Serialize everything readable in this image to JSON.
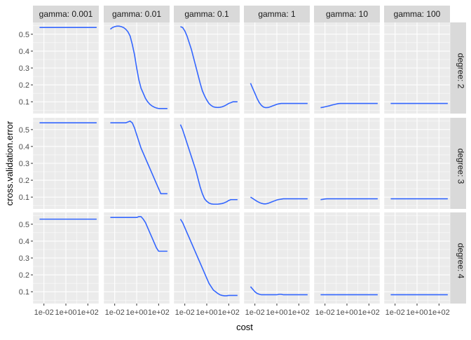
{
  "chart_data": {
    "type": "line",
    "facet": "grid",
    "xlabel": "cost",
    "ylabel": "cross.validation.error",
    "x_scale": "log10",
    "xlim": [
      0.001,
      1000
    ],
    "x_ticks": [
      0.01,
      1,
      100
    ],
    "x_tick_labels": [
      "1e-02",
      "1e+00",
      "1e+02"
    ],
    "ylim": [
      0.03,
      0.57
    ],
    "y_ticks": [
      0.1,
      0.2,
      0.3,
      0.4,
      0.5
    ],
    "y_tick_labels": [
      "0.1",
      "0.2",
      "0.3",
      "0.4",
      "0.5"
    ],
    "grid": true,
    "line_color": "#3366FF",
    "panel_bg": "#EBEBEB",
    "strip_bg": "#D9D9D9",
    "columns": [
      "gamma: 0.001",
      "gamma: 0.01",
      "gamma: 0.1",
      "gamma: 1",
      "gamma: 10",
      "gamma: 100"
    ],
    "rows": [
      "degree: 2",
      "degree: 3",
      "degree: 4"
    ],
    "cost": [
      0.004,
      0.0063,
      0.01,
      0.0158,
      0.0251,
      0.0398,
      0.0631,
      0.1,
      0.158,
      0.251,
      0.398,
      0.631,
      1,
      1.58,
      2.51,
      3.98,
      6.31,
      10,
      15.8,
      25.1,
      39.8,
      63.1,
      100,
      158,
      251,
      398,
      631
    ],
    "errors": [
      [
        [
          0.54,
          0.54,
          0.54,
          0.54,
          0.54,
          0.54,
          0.54,
          0.54,
          0.54,
          0.54,
          0.54,
          0.54,
          0.54,
          0.54,
          0.54,
          0.54,
          0.54,
          0.54,
          0.54,
          0.54,
          0.54,
          0.54,
          0.54,
          0.54,
          0.54,
          0.54,
          0.54
        ],
        [
          0.54,
          0.54,
          0.54,
          0.54,
          0.54,
          0.54,
          0.54,
          0.54,
          0.54,
          0.54,
          0.54,
          0.54,
          0.54,
          0.54,
          0.54,
          0.54,
          0.54,
          0.54,
          0.54,
          0.54,
          0.54,
          0.54,
          0.54,
          0.54,
          0.54,
          0.54,
          0.54
        ],
        [
          0.53,
          0.53,
          0.53,
          0.53,
          0.53,
          0.53,
          0.53,
          0.53,
          0.53,
          0.53,
          0.53,
          0.53,
          0.53,
          0.53,
          0.53,
          0.53,
          0.53,
          0.53,
          0.53,
          0.53,
          0.53,
          0.53,
          0.53,
          0.53,
          0.53,
          0.53,
          0.53
        ]
      ],
      [
        [
          0.53,
          0.54,
          0.545,
          0.548,
          0.548,
          0.545,
          0.54,
          0.53,
          0.515,
          0.49,
          0.44,
          0.38,
          0.3,
          0.23,
          0.18,
          0.15,
          0.12,
          0.1,
          0.085,
          0.075,
          0.068,
          0.063,
          0.06,
          0.06,
          0.06,
          0.06,
          0.06
        ],
        [
          0.54,
          0.54,
          0.54,
          0.54,
          0.54,
          0.54,
          0.54,
          0.54,
          0.545,
          0.55,
          0.54,
          0.51,
          0.47,
          0.43,
          0.39,
          0.36,
          0.33,
          0.3,
          0.27,
          0.24,
          0.21,
          0.18,
          0.15,
          0.12,
          0.12,
          0.12,
          0.12
        ],
        [
          0.54,
          0.54,
          0.54,
          0.54,
          0.54,
          0.54,
          0.54,
          0.54,
          0.54,
          0.54,
          0.54,
          0.54,
          0.54,
          0.545,
          0.545,
          0.53,
          0.51,
          0.48,
          0.45,
          0.42,
          0.39,
          0.36,
          0.34,
          0.34,
          0.34,
          0.34,
          0.34
        ]
      ],
      [
        [
          0.545,
          0.54,
          0.52,
          0.49,
          0.45,
          0.41,
          0.36,
          0.31,
          0.26,
          0.21,
          0.165,
          0.135,
          0.11,
          0.09,
          0.078,
          0.07,
          0.067,
          0.066,
          0.067,
          0.07,
          0.075,
          0.082,
          0.09,
          0.095,
          0.1,
          0.1,
          0.1
        ],
        [
          0.53,
          0.5,
          0.46,
          0.42,
          0.38,
          0.34,
          0.3,
          0.26,
          0.21,
          0.16,
          0.12,
          0.09,
          0.075,
          0.065,
          0.06,
          0.058,
          0.058,
          0.058,
          0.06,
          0.062,
          0.066,
          0.072,
          0.08,
          0.085,
          0.085,
          0.085,
          0.085
        ],
        [
          0.53,
          0.51,
          0.48,
          0.45,
          0.42,
          0.39,
          0.36,
          0.33,
          0.3,
          0.27,
          0.24,
          0.21,
          0.18,
          0.15,
          0.13,
          0.11,
          0.1,
          0.09,
          0.082,
          0.078,
          0.076,
          0.076,
          0.078,
          0.078,
          0.078,
          0.078,
          0.078
        ]
      ],
      [
        [
          0.21,
          0.18,
          0.15,
          0.12,
          0.095,
          0.078,
          0.068,
          0.065,
          0.066,
          0.07,
          0.075,
          0.08,
          0.085,
          0.088,
          0.09,
          0.09,
          0.09,
          0.09,
          0.09,
          0.09,
          0.09,
          0.09,
          0.09,
          0.09,
          0.09,
          0.09,
          0.09
        ],
        [
          0.1,
          0.092,
          0.083,
          0.075,
          0.068,
          0.063,
          0.06,
          0.06,
          0.063,
          0.068,
          0.073,
          0.078,
          0.083,
          0.086,
          0.088,
          0.09,
          0.09,
          0.09,
          0.09,
          0.09,
          0.09,
          0.09,
          0.09,
          0.09,
          0.09,
          0.09,
          0.09
        ],
        [
          0.13,
          0.115,
          0.1,
          0.09,
          0.085,
          0.082,
          0.082,
          0.082,
          0.082,
          0.082,
          0.082,
          0.082,
          0.082,
          0.085,
          0.085,
          0.082,
          0.082,
          0.082,
          0.082,
          0.082,
          0.082,
          0.082,
          0.082,
          0.082,
          0.082,
          0.082,
          0.082
        ]
      ],
      [
        [
          0.065,
          0.067,
          0.07,
          0.073,
          0.076,
          0.08,
          0.083,
          0.086,
          0.089,
          0.09,
          0.09,
          0.09,
          0.09,
          0.09,
          0.09,
          0.09,
          0.09,
          0.09,
          0.09,
          0.09,
          0.09,
          0.09,
          0.09,
          0.09,
          0.09,
          0.09,
          0.09
        ],
        [
          0.085,
          0.087,
          0.089,
          0.09,
          0.09,
          0.09,
          0.09,
          0.09,
          0.09,
          0.09,
          0.09,
          0.09,
          0.09,
          0.09,
          0.09,
          0.09,
          0.09,
          0.09,
          0.09,
          0.09,
          0.09,
          0.09,
          0.09,
          0.09,
          0.09,
          0.09,
          0.09
        ],
        [
          0.082,
          0.082,
          0.082,
          0.082,
          0.082,
          0.082,
          0.082,
          0.082,
          0.082,
          0.082,
          0.082,
          0.082,
          0.082,
          0.082,
          0.082,
          0.082,
          0.082,
          0.082,
          0.082,
          0.082,
          0.082,
          0.082,
          0.082,
          0.082,
          0.082,
          0.082,
          0.082
        ]
      ],
      [
        [
          0.09,
          0.09,
          0.09,
          0.09,
          0.09,
          0.09,
          0.09,
          0.09,
          0.09,
          0.09,
          0.09,
          0.09,
          0.09,
          0.09,
          0.09,
          0.09,
          0.09,
          0.09,
          0.09,
          0.09,
          0.09,
          0.09,
          0.09,
          0.09,
          0.09,
          0.09,
          0.09
        ],
        [
          0.09,
          0.09,
          0.09,
          0.09,
          0.09,
          0.09,
          0.09,
          0.09,
          0.09,
          0.09,
          0.09,
          0.09,
          0.09,
          0.09,
          0.09,
          0.09,
          0.09,
          0.09,
          0.09,
          0.09,
          0.09,
          0.09,
          0.09,
          0.09,
          0.09,
          0.09,
          0.09
        ],
        [
          0.082,
          0.082,
          0.082,
          0.082,
          0.082,
          0.082,
          0.082,
          0.082,
          0.082,
          0.082,
          0.082,
          0.082,
          0.082,
          0.082,
          0.082,
          0.082,
          0.082,
          0.082,
          0.082,
          0.082,
          0.082,
          0.082,
          0.082,
          0.082,
          0.082,
          0.082,
          0.082
        ]
      ]
    ]
  }
}
